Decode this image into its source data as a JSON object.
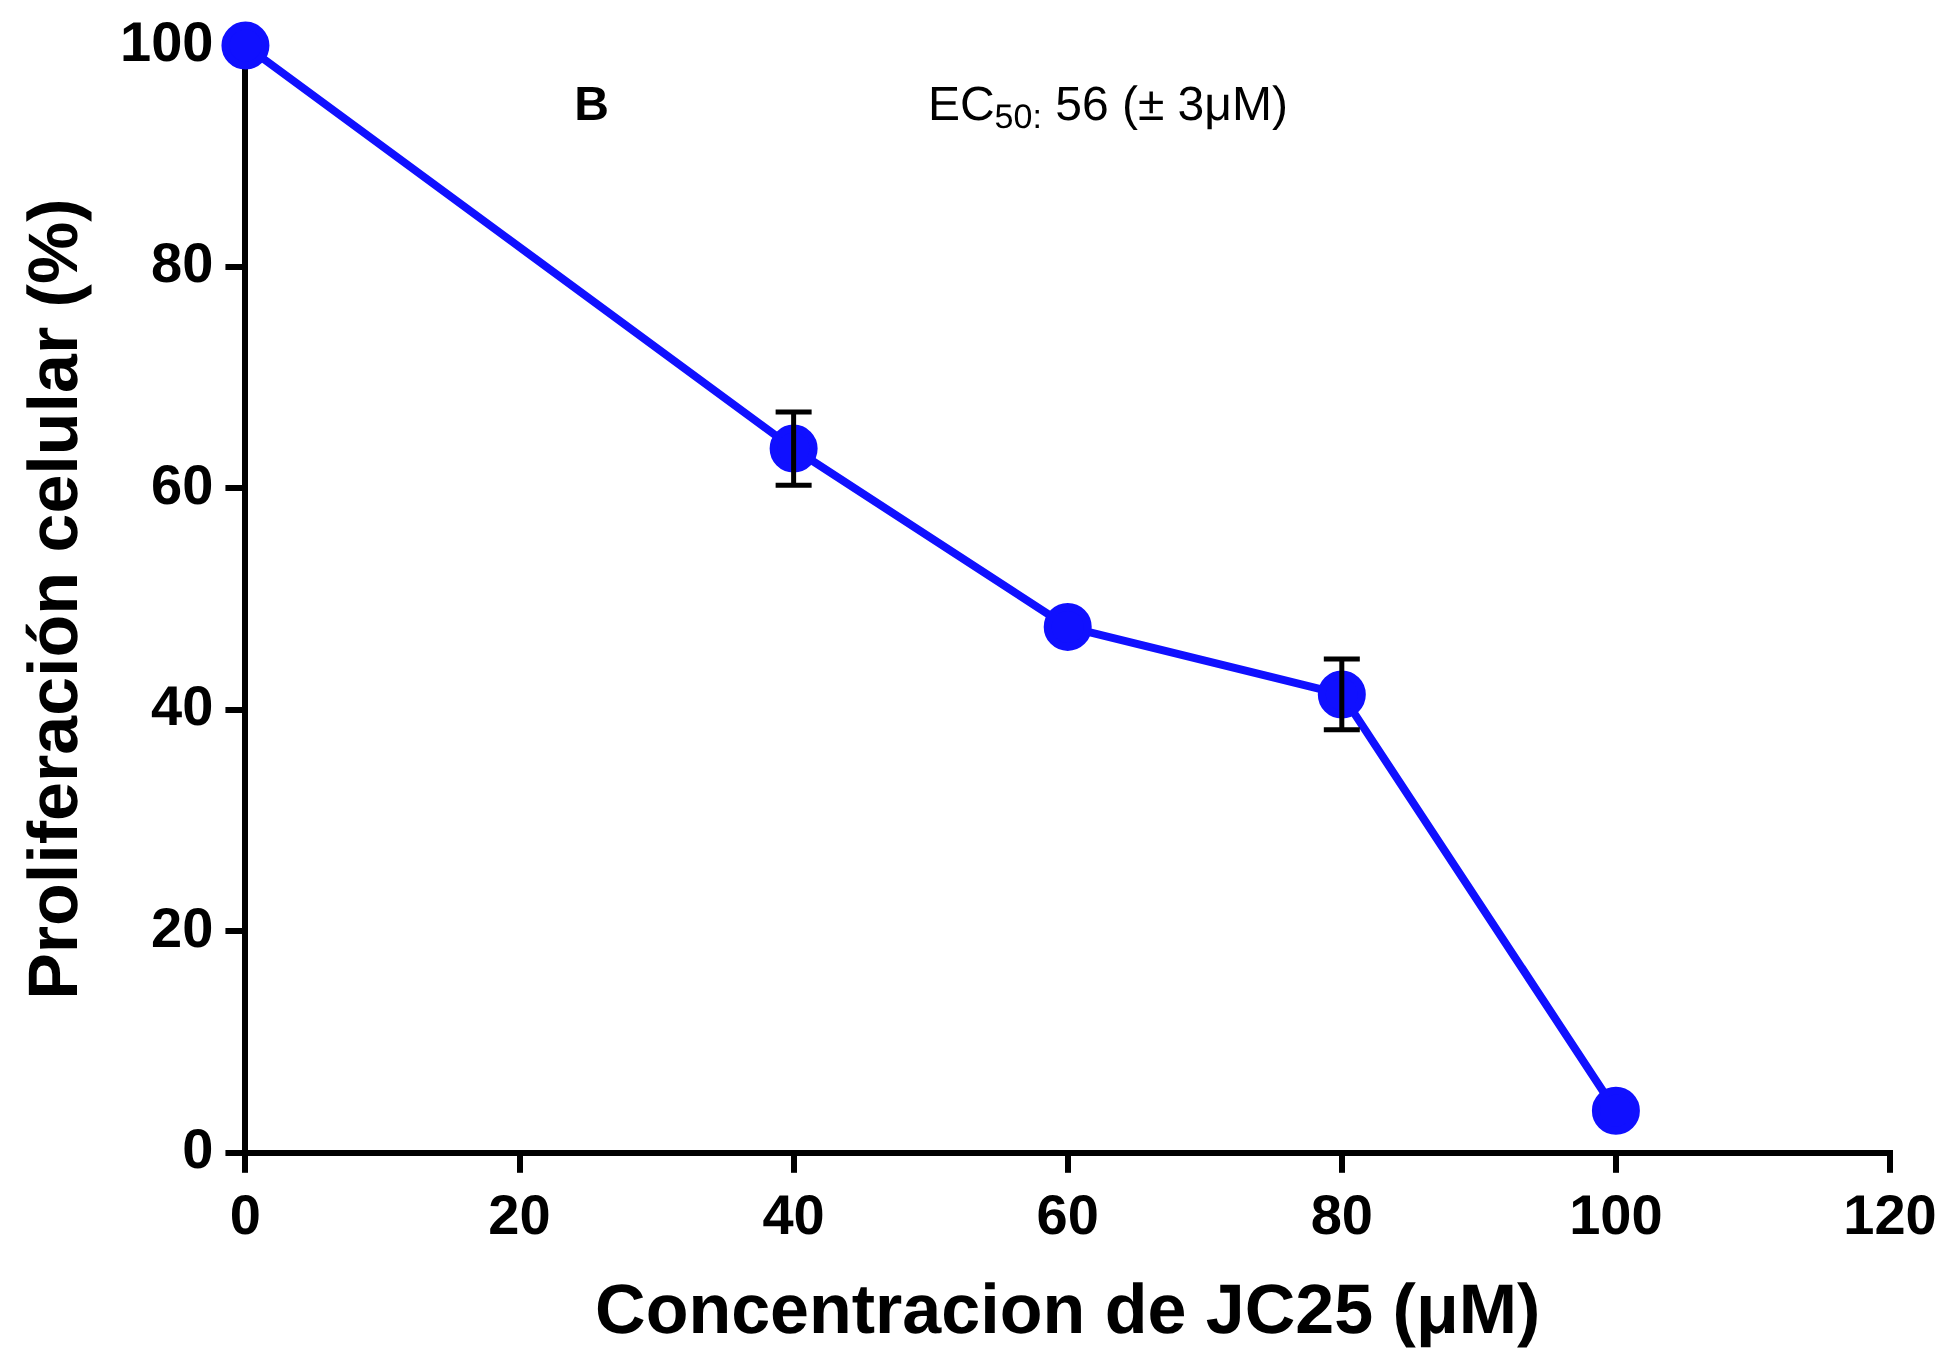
{
  "chart_data": {
    "type": "line",
    "xlabel": "Concentracion de JC25 (μM)",
    "ylabel": "Proliferación celular (%)",
    "annotations": [
      "B",
      "EC$_{50:}$ 56 (± 3μM)"
    ],
    "x": [
      0,
      40,
      60,
      80,
      100
    ],
    "series": [
      {
        "color": "#1010ff",
        "values": [
          100,
          63.6,
          47.5,
          41.4,
          3.8
        ],
        "errors": [
          null,
          3.3,
          null,
          3.2,
          null
        ]
      }
    ],
    "xlim": [
      0,
      120
    ],
    "xticks": [
      0,
      20,
      40,
      60,
      80,
      100,
      120
    ],
    "ylim": [
      0,
      100
    ],
    "yticks": [
      0,
      20,
      40,
      60,
      80,
      100
    ],
    "marker": "circle",
    "line_style": "solid",
    "legend": false
  }
}
